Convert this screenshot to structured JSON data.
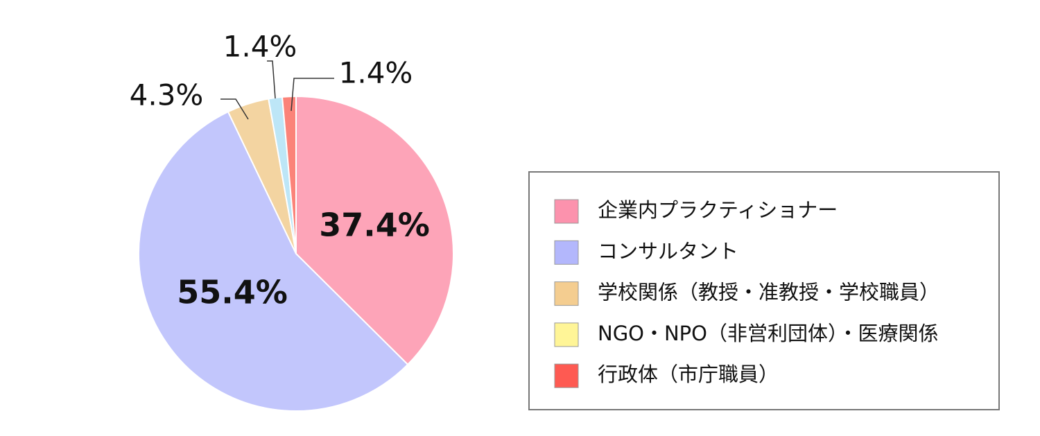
{
  "chart_data": {
    "type": "pie",
    "categories": [
      "企業内プラクティショナー",
      "コンサルタント",
      "学校関係（教授・准教授・学校職員）",
      "NGO・NPO（非営利団体）・医療関係",
      "行政体（市庁職員）"
    ],
    "values": [
      37.4,
      55.4,
      4.3,
      1.4,
      1.4
    ],
    "value_labels": [
      "37.4%",
      "55.4%",
      "4.3%",
      "1.4%",
      "1.4%"
    ],
    "colors": [
      "#fda4b8",
      "#c2c6fc",
      "#f3d4a1",
      "#bde6f7",
      "#fb8379"
    ],
    "legend_colors": [
      "#fc92ad",
      "#b3b7fc",
      "#f4cd90",
      "#fff597",
      "#fe5a52"
    ]
  }
}
